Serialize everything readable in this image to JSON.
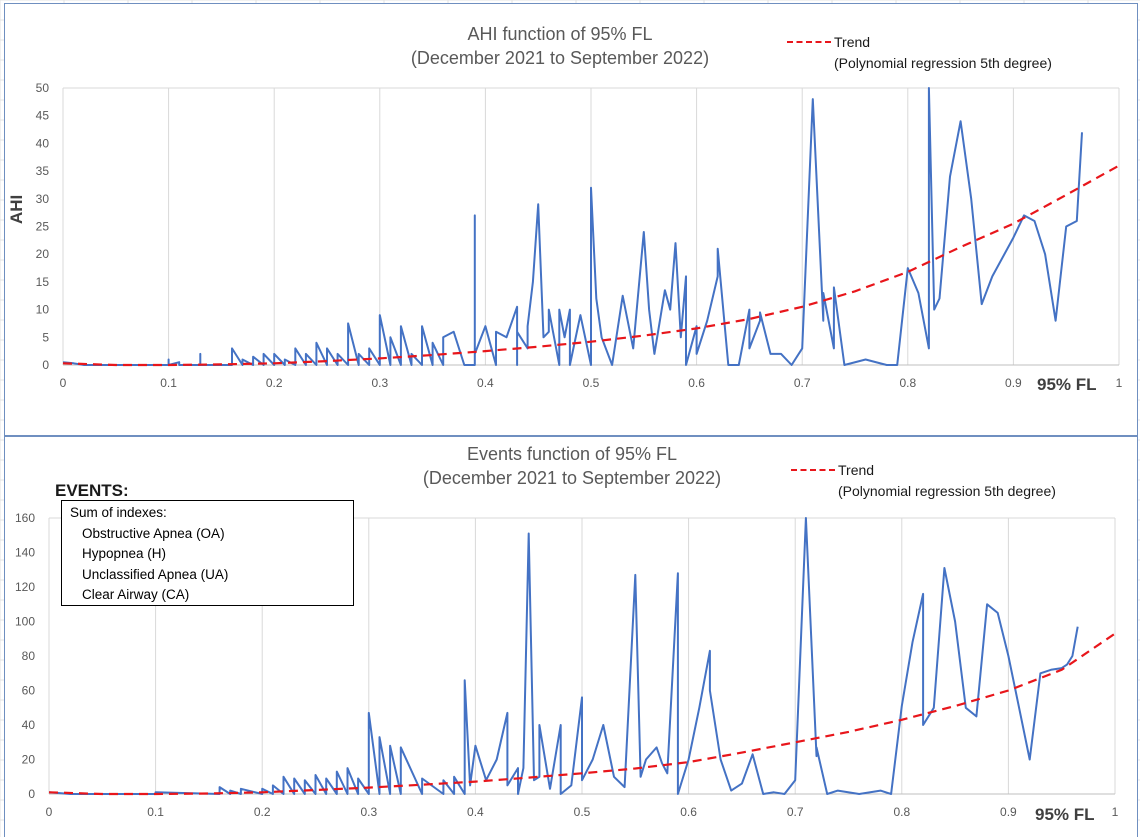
{
  "colors": {
    "series": "#4472c4",
    "trend": "#e8161b",
    "grid": "#d9d9d9",
    "axis_text": "#595959"
  },
  "legend": {
    "trend_label": "Trend",
    "trend_detail": "(Polynomial regression 5th degree)"
  },
  "events_box": {
    "heading": "EVENTS:",
    "title": "Sum of indexes:",
    "items": [
      "Obstructive Apnea (OA)",
      "Hypopnea (H)",
      "Unclassified Apnea (UA)",
      "Clear Airway (CA)"
    ]
  },
  "chart_data": [
    {
      "type": "line",
      "title": "AHI function of 95% FL",
      "subtitle": "(December 2021 to September 2022)",
      "xlabel": "95% FL",
      "ylabel": "AHI",
      "xlim": [
        0,
        1
      ],
      "ylim": [
        0,
        50
      ],
      "xticks": [
        "0",
        "0.1",
        "0.2",
        "0.3",
        "0.4",
        "0.5",
        "0.6",
        "0.7",
        "0.8",
        "0.9",
        "1"
      ],
      "yticks": [
        "0",
        "5",
        "10",
        "15",
        "20",
        "25",
        "30",
        "35",
        "40",
        "45",
        "50"
      ],
      "grid": "vertical",
      "series": [
        {
          "x": [
            0,
            0.01,
            0.02,
            0.03,
            0.05,
            0.07,
            0.1,
            0.1,
            0.1,
            0.11,
            0.11,
            0.13,
            0.13,
            0.13,
            0.16,
            0.16,
            0.17,
            0.17,
            0.18,
            0.18,
            0.19,
            0.19,
            0.2,
            0.2,
            0.21,
            0.21,
            0.22,
            0.22,
            0.23,
            0.23,
            0.24,
            0.24,
            0.25,
            0.25,
            0.26,
            0.26,
            0.27,
            0.27,
            0.28,
            0.28,
            0.29,
            0.29,
            0.3,
            0.3,
            0.31,
            0.31,
            0.32,
            0.32,
            0.33,
            0.33,
            0.34,
            0.34,
            0.35,
            0.35,
            0.36,
            0.36,
            0.37,
            0.38,
            0.39,
            0.39,
            0.39,
            0.4,
            0.41,
            0.41,
            0.42,
            0.43,
            0.43,
            0.43,
            0.44,
            0.44,
            0.445,
            0.45,
            0.455,
            0.46,
            0.46,
            0.47,
            0.47,
            0.475,
            0.48,
            0.48,
            0.49,
            0.5,
            0.5,
            0.505,
            0.51,
            0.52,
            0.53,
            0.54,
            0.55,
            0.555,
            0.56,
            0.57,
            0.575,
            0.58,
            0.585,
            0.59,
            0.59,
            0.6,
            0.6,
            0.61,
            0.62,
            0.62,
            0.63,
            0.64,
            0.65,
            0.65,
            0.66,
            0.66,
            0.67,
            0.68,
            0.69,
            0.7,
            0.71,
            0.72,
            0.72,
            0.73,
            0.73,
            0.74,
            0.76,
            0.78,
            0.79,
            0.8,
            0.81,
            0.82,
            0.82,
            0.82,
            0.825,
            0.83,
            0.84,
            0.85,
            0.86,
            0.87,
            0.88,
            0.9,
            0.91,
            0.92,
            0.93,
            0.94,
            0.95,
            0.955,
            0.96,
            0.965
          ],
          "y": [
            0.5,
            0.3,
            0,
            0,
            0,
            0,
            0,
            1,
            0,
            0.5,
            0,
            0,
            2,
            0,
            0,
            3,
            0,
            1,
            0,
            1.5,
            0,
            2,
            0,
            2,
            0,
            1,
            0,
            3,
            0,
            2,
            0,
            4,
            0,
            3,
            0,
            2,
            0,
            7.5,
            0,
            2,
            0,
            3,
            0,
            9,
            0,
            5,
            0,
            7,
            0,
            2,
            0,
            7,
            0,
            4,
            0,
            5,
            6,
            0,
            0,
            27,
            2,
            7,
            0,
            6,
            5,
            10.5,
            0,
            6,
            3,
            7,
            15,
            29,
            5,
            6,
            10,
            0,
            10,
            5,
            10,
            0,
            9,
            0,
            32,
            12,
            5,
            0,
            12.5,
            3,
            24,
            10,
            2,
            13.5,
            10,
            22,
            5,
            16,
            0,
            7,
            2,
            8,
            16,
            21,
            0,
            0,
            10,
            3,
            8,
            9.5,
            2,
            2,
            0,
            3,
            48,
            8,
            13,
            3,
            14,
            0,
            1,
            0,
            0,
            17.5,
            13,
            3,
            15,
            50,
            10,
            12,
            34,
            44,
            30,
            11,
            16,
            23,
            27,
            26,
            20,
            8,
            25,
            25.5,
            26,
            42
          ]
        },
        {
          "name": "Trend",
          "x": [
            0,
            0.05,
            0.1,
            0.15,
            0.2,
            0.25,
            0.3,
            0.35,
            0.4,
            0.45,
            0.5,
            0.55,
            0.6,
            0.65,
            0.7,
            0.75,
            0.8,
            0.85,
            0.9,
            0.95,
            1
          ],
          "y": [
            0.3,
            0,
            0,
            0.1,
            0.3,
            0.7,
            1.2,
            1.8,
            2.5,
            3.3,
            4.2,
            5.3,
            6.6,
            8.3,
            10.5,
            13.3,
            16.8,
            21.3,
            25.5,
            30.7,
            36
          ]
        }
      ]
    },
    {
      "type": "line",
      "title": "Events function of 95% FL",
      "subtitle": "(December 2021 to September 2022)",
      "xlabel": "95% FL",
      "ylabel": "",
      "xlim": [
        0,
        1
      ],
      "ylim": [
        0,
        160
      ],
      "xticks": [
        "0",
        "0.1",
        "0.2",
        "0.3",
        "0.4",
        "0.5",
        "0.6",
        "0.7",
        "0.8",
        "0.9",
        "1"
      ],
      "yticks": [
        "0",
        "20",
        "40",
        "60",
        "80",
        "100",
        "120",
        "140",
        "160"
      ],
      "grid": "vertical",
      "series": [
        {
          "x": [
            0,
            0.01,
            0.02,
            0.05,
            0.1,
            0.1,
            0.16,
            0.16,
            0.17,
            0.17,
            0.18,
            0.18,
            0.2,
            0.2,
            0.21,
            0.21,
            0.22,
            0.22,
            0.23,
            0.23,
            0.24,
            0.24,
            0.25,
            0.25,
            0.26,
            0.26,
            0.27,
            0.27,
            0.28,
            0.28,
            0.29,
            0.29,
            0.3,
            0.3,
            0.31,
            0.31,
            0.32,
            0.32,
            0.33,
            0.33,
            0.35,
            0.35,
            0.37,
            0.37,
            0.38,
            0.38,
            0.39,
            0.39,
            0.395,
            0.4,
            0.41,
            0.42,
            0.43,
            0.43,
            0.44,
            0.44,
            0.445,
            0.45,
            0.455,
            0.46,
            0.46,
            0.47,
            0.48,
            0.48,
            0.49,
            0.5,
            0.5,
            0.51,
            0.52,
            0.53,
            0.54,
            0.55,
            0.555,
            0.56,
            0.57,
            0.575,
            0.58,
            0.59,
            0.59,
            0.6,
            0.61,
            0.62,
            0.62,
            0.63,
            0.64,
            0.65,
            0.66,
            0.67,
            0.68,
            0.69,
            0.7,
            0.71,
            0.71,
            0.72,
            0.72,
            0.73,
            0.74,
            0.76,
            0.78,
            0.79,
            0.8,
            0.81,
            0.82,
            0.82,
            0.83,
            0.84,
            0.85,
            0.86,
            0.87,
            0.88,
            0.89,
            0.9,
            0.91,
            0.92,
            0.93,
            0.94,
            0.95,
            0.955,
            0.96,
            0.965
          ],
          "y": [
            1,
            0.5,
            0,
            0,
            0,
            1,
            0,
            4,
            0,
            2,
            0,
            3,
            0,
            3,
            0,
            5,
            0,
            10,
            0,
            9,
            0,
            8,
            0,
            11,
            0,
            9,
            0,
            13,
            0,
            15,
            0,
            9,
            0,
            47,
            0,
            33,
            0,
            28,
            0,
            27,
            0,
            9,
            0,
            8,
            0,
            10,
            0,
            66,
            5,
            28,
            8,
            20,
            47,
            5,
            15,
            0,
            15,
            151,
            8,
            10,
            40,
            3,
            40,
            0,
            5,
            56,
            8,
            20,
            40,
            10,
            4,
            127,
            10,
            20,
            27,
            18,
            12,
            128,
            0,
            20,
            50,
            83,
            60,
            20,
            2,
            6,
            23,
            0,
            1,
            0,
            8,
            160,
            160,
            22,
            27,
            0,
            2,
            0,
            2,
            0,
            51,
            88,
            116,
            40,
            50,
            131,
            100,
            50,
            45,
            110,
            105,
            80,
            50,
            20,
            70,
            72,
            73,
            75,
            80,
            97
          ]
        },
        {
          "name": "Trend",
          "x": [
            0,
            0.05,
            0.1,
            0.15,
            0.2,
            0.25,
            0.3,
            0.35,
            0.4,
            0.45,
            0.5,
            0.55,
            0.6,
            0.65,
            0.7,
            0.75,
            0.8,
            0.85,
            0.9,
            0.95,
            1
          ],
          "y": [
            1,
            0,
            0,
            0.3,
            1,
            2.3,
            3.7,
            5.4,
            7.2,
            9.5,
            12,
            14.8,
            18.5,
            24,
            30,
            36,
            43,
            51,
            60,
            72,
            93
          ]
        }
      ]
    }
  ]
}
